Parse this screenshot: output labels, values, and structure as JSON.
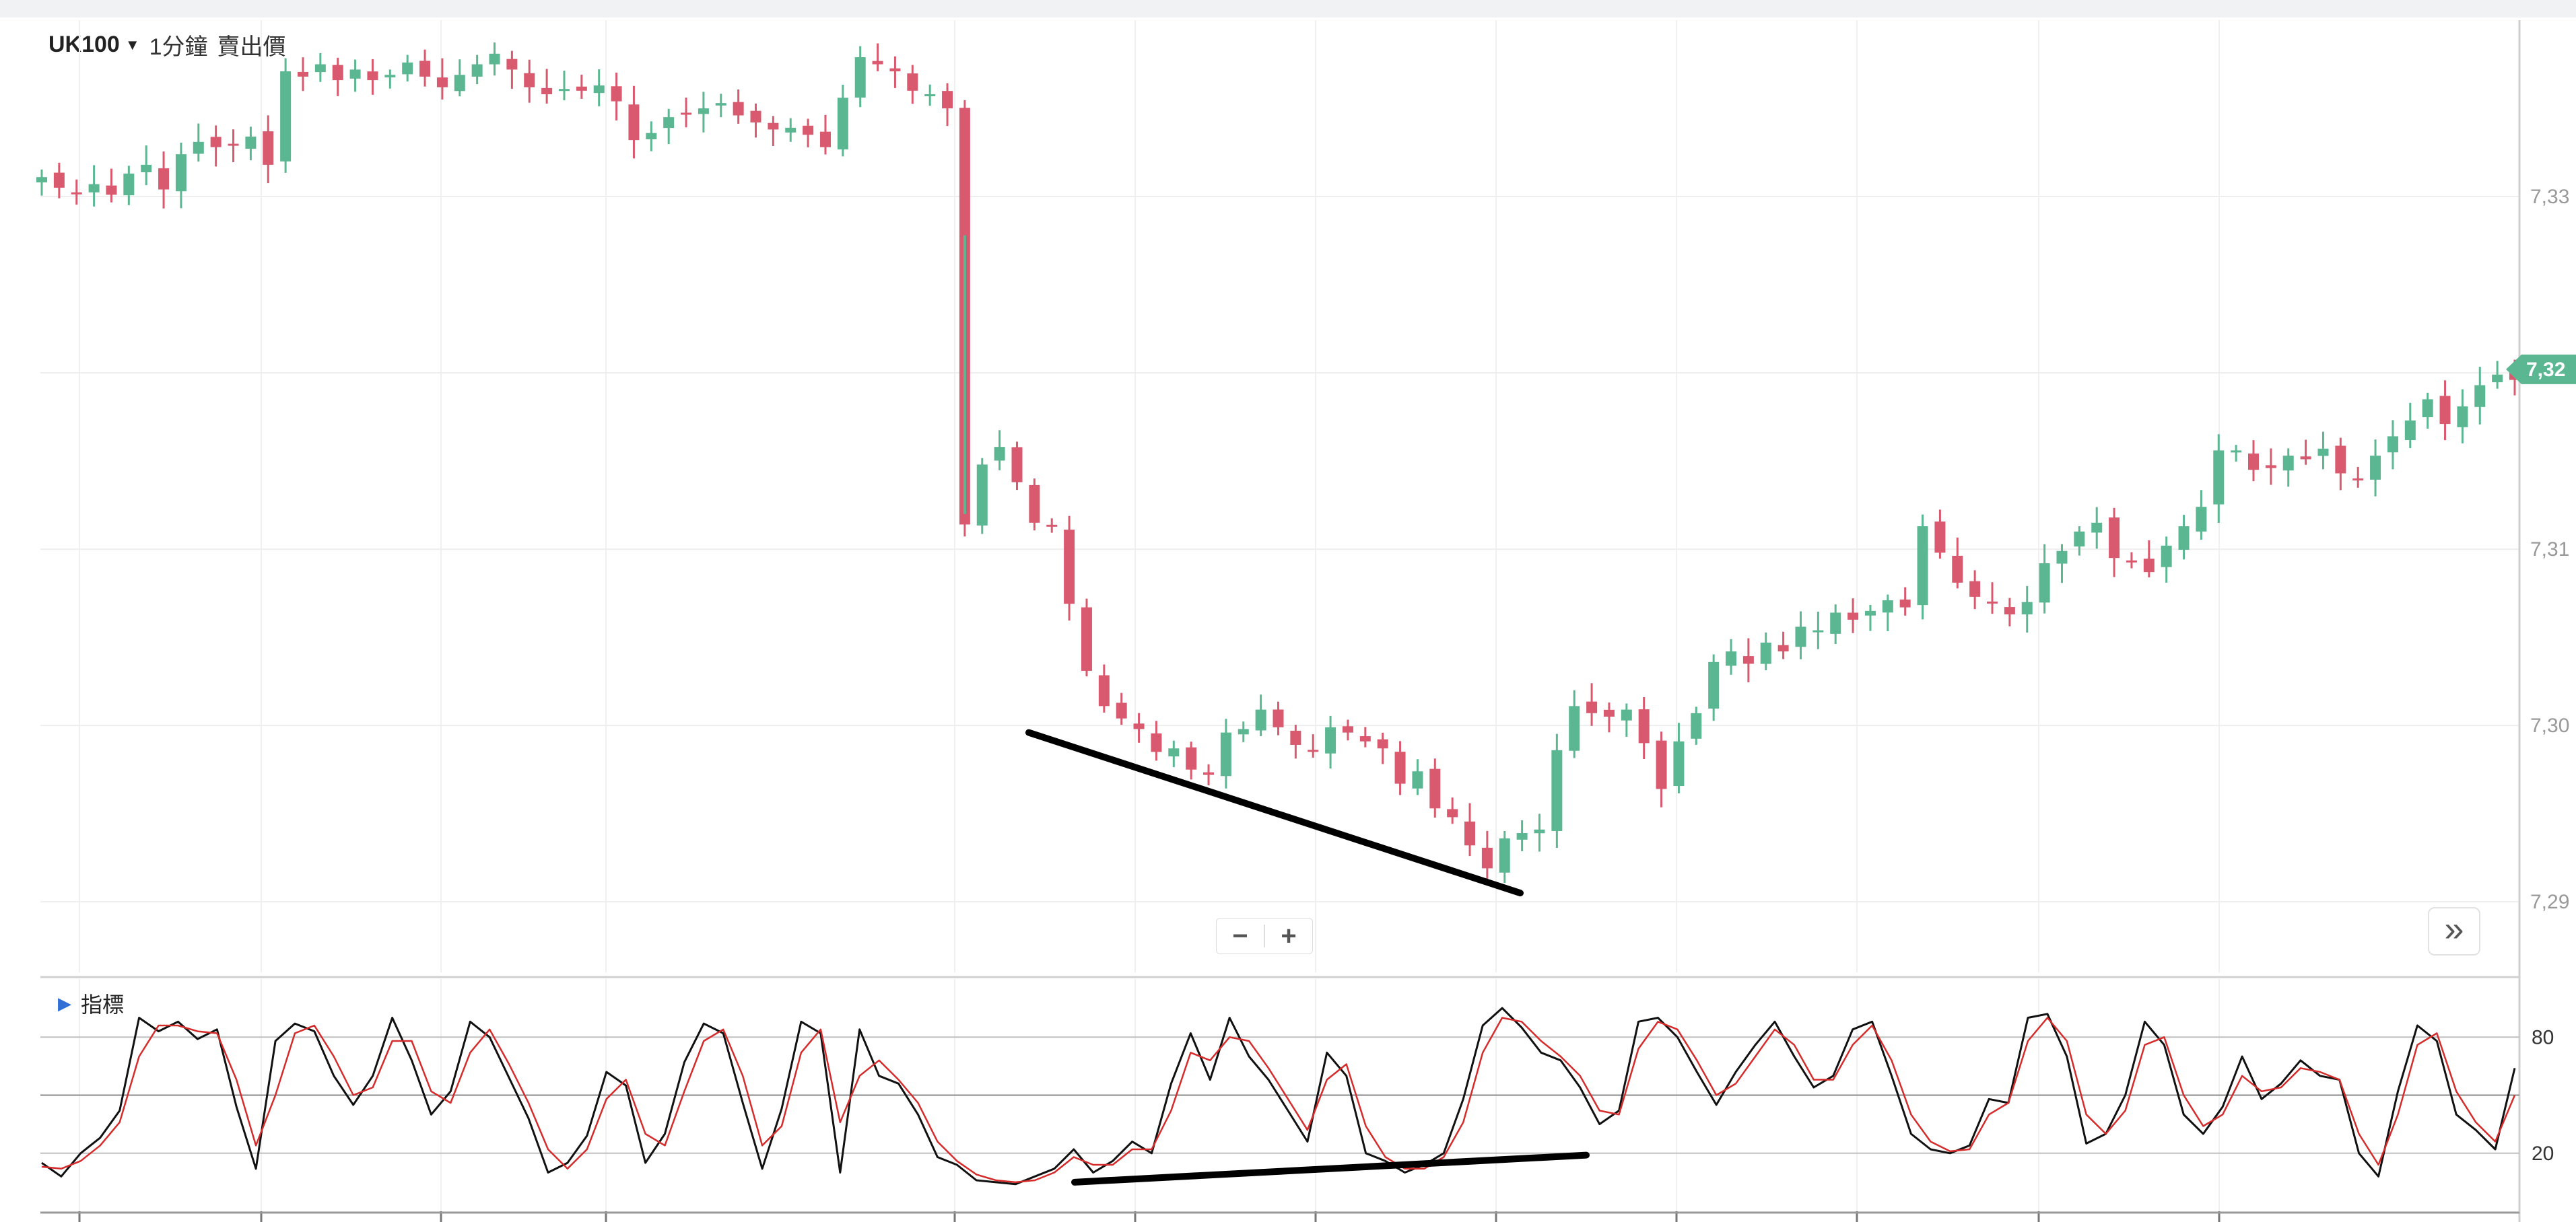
{
  "header": {
    "symbol": "UK100",
    "timeframe": "1分鐘",
    "price_type": "賣出價"
  },
  "zoom": {
    "minus": "−",
    "plus": "+"
  },
  "expand_label": "»",
  "indicator": {
    "label": "指標"
  },
  "colors": {
    "up": "#5bb792",
    "down": "#d9596e",
    "stoch_k": "#111111",
    "stoch_d": "#d62b2b",
    "trendline": "#000000"
  },
  "chart_data": [
    {
      "type": "candlestick",
      "title": "",
      "y_tick_labels": [
        "7,33",
        "7,32",
        "7,31",
        "7,30",
        "7,29"
      ],
      "y_ticks": [
        7330,
        7320,
        7310,
        7300,
        7290
      ],
      "ylim": [
        7286,
        7340
      ],
      "current_price_label": "7,32",
      "current_price": 7320.2,
      "grid": true,
      "series": [
        {
          "name": "",
          "type": "line",
          "values": [
            7331.1,
            7330.5,
            7330.2,
            7330.7,
            7330.1,
            7331.3,
            7331.8,
            7330.4,
            7332.4,
            7333.1,
            7332.8,
            7332.9,
            7333.4,
            7331.8,
            7337.1,
            7336.8,
            7337.5,
            7336.6,
            7337.2,
            7336.6,
            7336.9,
            7337.6,
            7336.8,
            7336.2,
            7336.9,
            7337.5,
            7338.1,
            7337.2,
            7336.2,
            7335.8,
            7336.1,
            7336.0,
            7336.3,
            7335.4,
            7333.2,
            7333.6,
            7334.5,
            7334.7,
            7335.0,
            7335.3,
            7334.6,
            7334.2,
            7333.8,
            7333.9,
            7333.5,
            7332.8,
            7335.6,
            7337.9,
            7337.5,
            7337.1,
            7336.0,
            7335.8,
            7335.0,
            7311.4,
            7314.8,
            7315.8,
            7313.8,
            7311.5,
            7311.3,
            7306.9,
            7303.1,
            7301.1,
            7300.4,
            7299.8,
            7298.5,
            7298.7,
            7297.5,
            7297.2,
            7299.6,
            7299.8,
            7300.9,
            7299.9,
            7298.9,
            7298.6,
            7299.9,
            7299.6,
            7299.1,
            7298.7,
            7296.7,
            7297.4,
            7295.3,
            7294.8,
            7293.2,
            7291.9,
            7293.6,
            7293.9,
            7294.1,
            7298.6,
            7301.1,
            7300.7,
            7300.5,
            7300.9,
            7299.0,
            7296.4,
            7299.1,
            7300.7,
            7303.6,
            7304.2,
            7303.5,
            7304.7,
            7304.2,
            7305.6,
            7305.4,
            7306.4,
            7306.0,
            7306.5,
            7307.1,
            7306.7,
            7311.3,
            7309.8,
            7308.1,
            7307.3,
            7307.0,
            7306.3,
            7307.0,
            7309.2,
            7309.9,
            7311.0,
            7311.5,
            7309.5,
            7309.3,
            7308.7,
            7310.2,
            7311.3,
            7312.4,
            7315.6,
            7315.6,
            7314.5,
            7314.6,
            7315.3,
            7315.1,
            7315.7,
            7314.3,
            7313.9,
            7315.3,
            7316.4,
            7317.3,
            7318.5,
            7317.1,
            7318.1,
            7319.3,
            7319.9,
            7319.6
          ]
        }
      ]
    },
    {
      "type": "line",
      "title": "",
      "y_tick_labels": [
        "80",
        "20"
      ],
      "y_ticks": [
        80,
        20
      ],
      "midline": 50,
      "ylim": [
        -10,
        110
      ],
      "grid": true,
      "series": [
        {
          "name": "",
          "values": [
            15,
            8,
            20,
            28,
            42,
            90,
            83,
            88,
            79,
            84,
            44,
            12,
            78,
            87,
            83,
            60,
            45,
            60,
            90,
            68,
            40,
            52,
            88,
            80,
            59,
            38,
            10,
            15,
            29,
            62,
            55,
            15,
            30,
            67,
            87,
            82,
            46,
            12,
            43,
            88,
            82,
            10,
            84,
            60,
            56,
            40,
            18,
            14,
            6,
            5,
            4,
            8,
            12,
            22,
            10,
            16,
            26,
            20,
            56,
            82,
            58,
            90,
            70,
            58,
            42,
            26,
            72,
            60,
            20,
            16,
            10,
            14,
            20,
            48,
            86,
            95,
            85,
            72,
            68,
            54,
            35,
            42,
            88,
            90,
            80,
            62,
            45,
            62,
            76,
            88,
            70,
            54,
            60,
            84,
            88,
            60,
            30,
            22,
            20,
            24,
            48,
            46,
            90,
            92,
            70,
            25,
            30,
            50,
            88,
            76,
            40,
            30,
            44,
            70,
            48,
            56,
            68,
            60,
            58,
            20,
            8,
            52,
            86,
            78,
            40,
            32,
            22,
            64
          ]
        },
        {
          "name": "",
          "values": [
            13,
            12,
            16,
            24,
            36,
            70,
            86,
            86,
            83,
            82,
            58,
            24,
            50,
            82,
            86,
            70,
            50,
            54,
            78,
            78,
            52,
            46,
            72,
            84,
            66,
            46,
            22,
            12,
            22,
            48,
            58,
            30,
            24,
            52,
            78,
            84,
            60,
            24,
            34,
            72,
            84,
            36,
            60,
            68,
            58,
            46,
            26,
            16,
            9,
            6,
            5,
            6,
            10,
            18,
            14,
            14,
            22,
            22,
            42,
            72,
            68,
            80,
            78,
            64,
            48,
            32,
            58,
            66,
            34,
            18,
            12,
            12,
            18,
            36,
            72,
            90,
            88,
            78,
            70,
            60,
            42,
            40,
            74,
            88,
            84,
            68,
            50,
            56,
            70,
            84,
            76,
            58,
            58,
            76,
            86,
            68,
            40,
            26,
            21,
            22,
            40,
            46,
            78,
            90,
            78,
            40,
            30,
            42,
            76,
            80,
            50,
            34,
            40,
            60,
            52,
            54,
            64,
            62,
            58,
            30,
            14,
            40,
            76,
            82,
            52,
            36,
            26,
            50
          ]
        }
      ]
    }
  ]
}
